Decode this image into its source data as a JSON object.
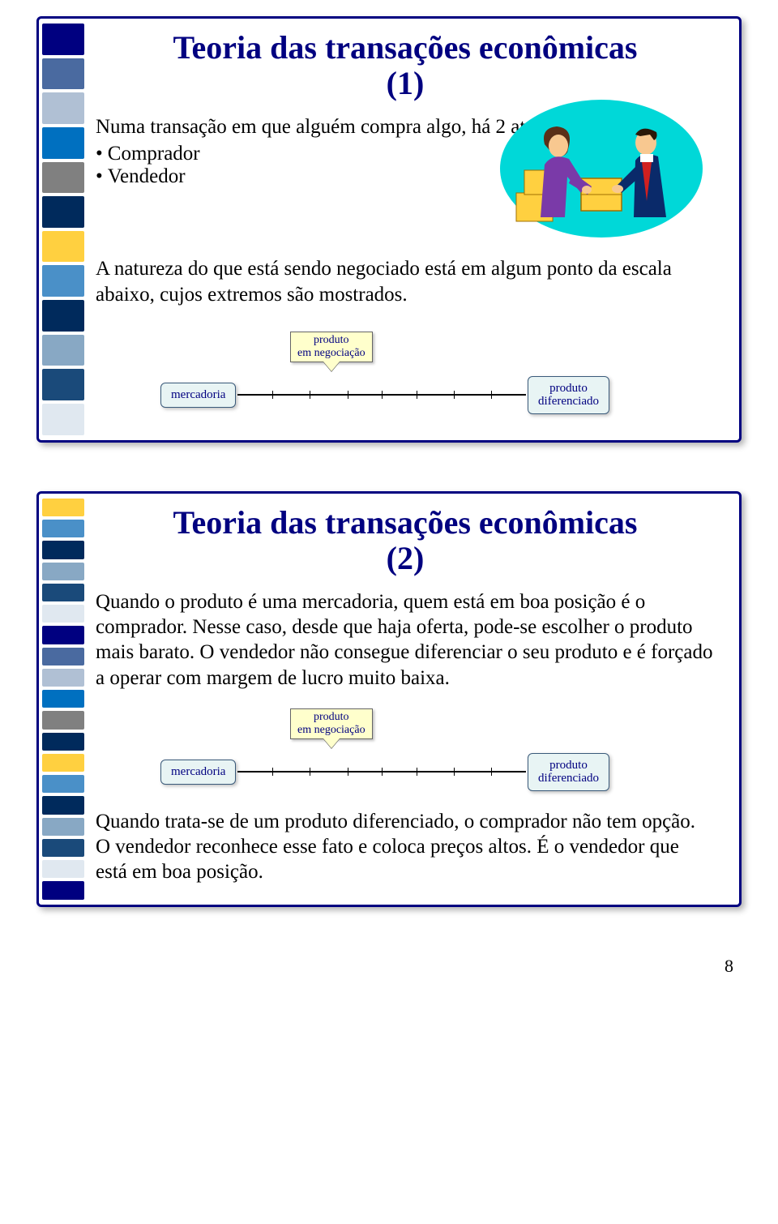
{
  "sidebar": {
    "colors_slide1": [
      "#000080",
      "#4a6aa0",
      "#b0c0d4",
      "#0070c0",
      "#808080",
      "#002a5c",
      "#ffd040",
      "#4a90c8",
      "#002a5c",
      "#88a8c4",
      "#1a4a7a",
      "#e0e8f0"
    ],
    "colors_slide2": [
      "#ffd040",
      "#4a90c8",
      "#002a5c",
      "#88a8c4",
      "#1a4a7a",
      "#e0e8f0",
      "#000080",
      "#4a6aa0",
      "#b0c0d4",
      "#0070c0",
      "#808080",
      "#002a5c",
      "#ffd040",
      "#4a90c8",
      "#002a5c",
      "#88a8c4",
      "#1a4a7a",
      "#e0e8f0",
      "#000080"
    ]
  },
  "slide1": {
    "title_main": "Teoria das transações econômicas",
    "title_num": "(1)",
    "intro": "Numa transação em que alguém compra algo, há 2 atores:",
    "bullet1": "Comprador",
    "bullet2": "Vendedor",
    "nature": "A natureza do que está sendo negociado está em algum ponto da escala abaixo, cujos extremos são mostrados.",
    "scale": {
      "callout_line1": "produto",
      "callout_line2": "em negociação",
      "left": "mercadoria",
      "right_line1": "produto",
      "right_line2": "diferenciado"
    }
  },
  "slide2": {
    "title_main": "Teoria das transações econômicas",
    "title_num": "(2)",
    "para1": "Quando o produto é uma mercadoria, quem está em boa posição é o comprador. Nesse caso, desde que haja oferta, pode-se escolher o produto mais barato. O vendedor não consegue diferenciar o seu produto e é forçado a operar com margem de lucro muito baixa.",
    "scale": {
      "callout_line1": "produto",
      "callout_line2": "em negociação",
      "left": "mercadoria",
      "right_line1": "produto",
      "right_line2": "diferenciado"
    },
    "para2": "Quando trata-se de um produto diferenciado, o comprador não tem opção. O vendedor reconhece esse fato e coloca preços altos. É o vendedor que está em boa posição."
  },
  "page_number": "8",
  "illustration": {
    "bg_color": "#00d8d8",
    "box_color": "#ffd040",
    "woman_suit": "#7a3aa8",
    "woman_hair": "#5a3018",
    "man_suit": "#0a2a6a",
    "man_tie": "#d02020",
    "skin": "#f8c890"
  },
  "ticks": [
    12,
    25,
    38,
    50,
    62,
    75,
    88
  ]
}
